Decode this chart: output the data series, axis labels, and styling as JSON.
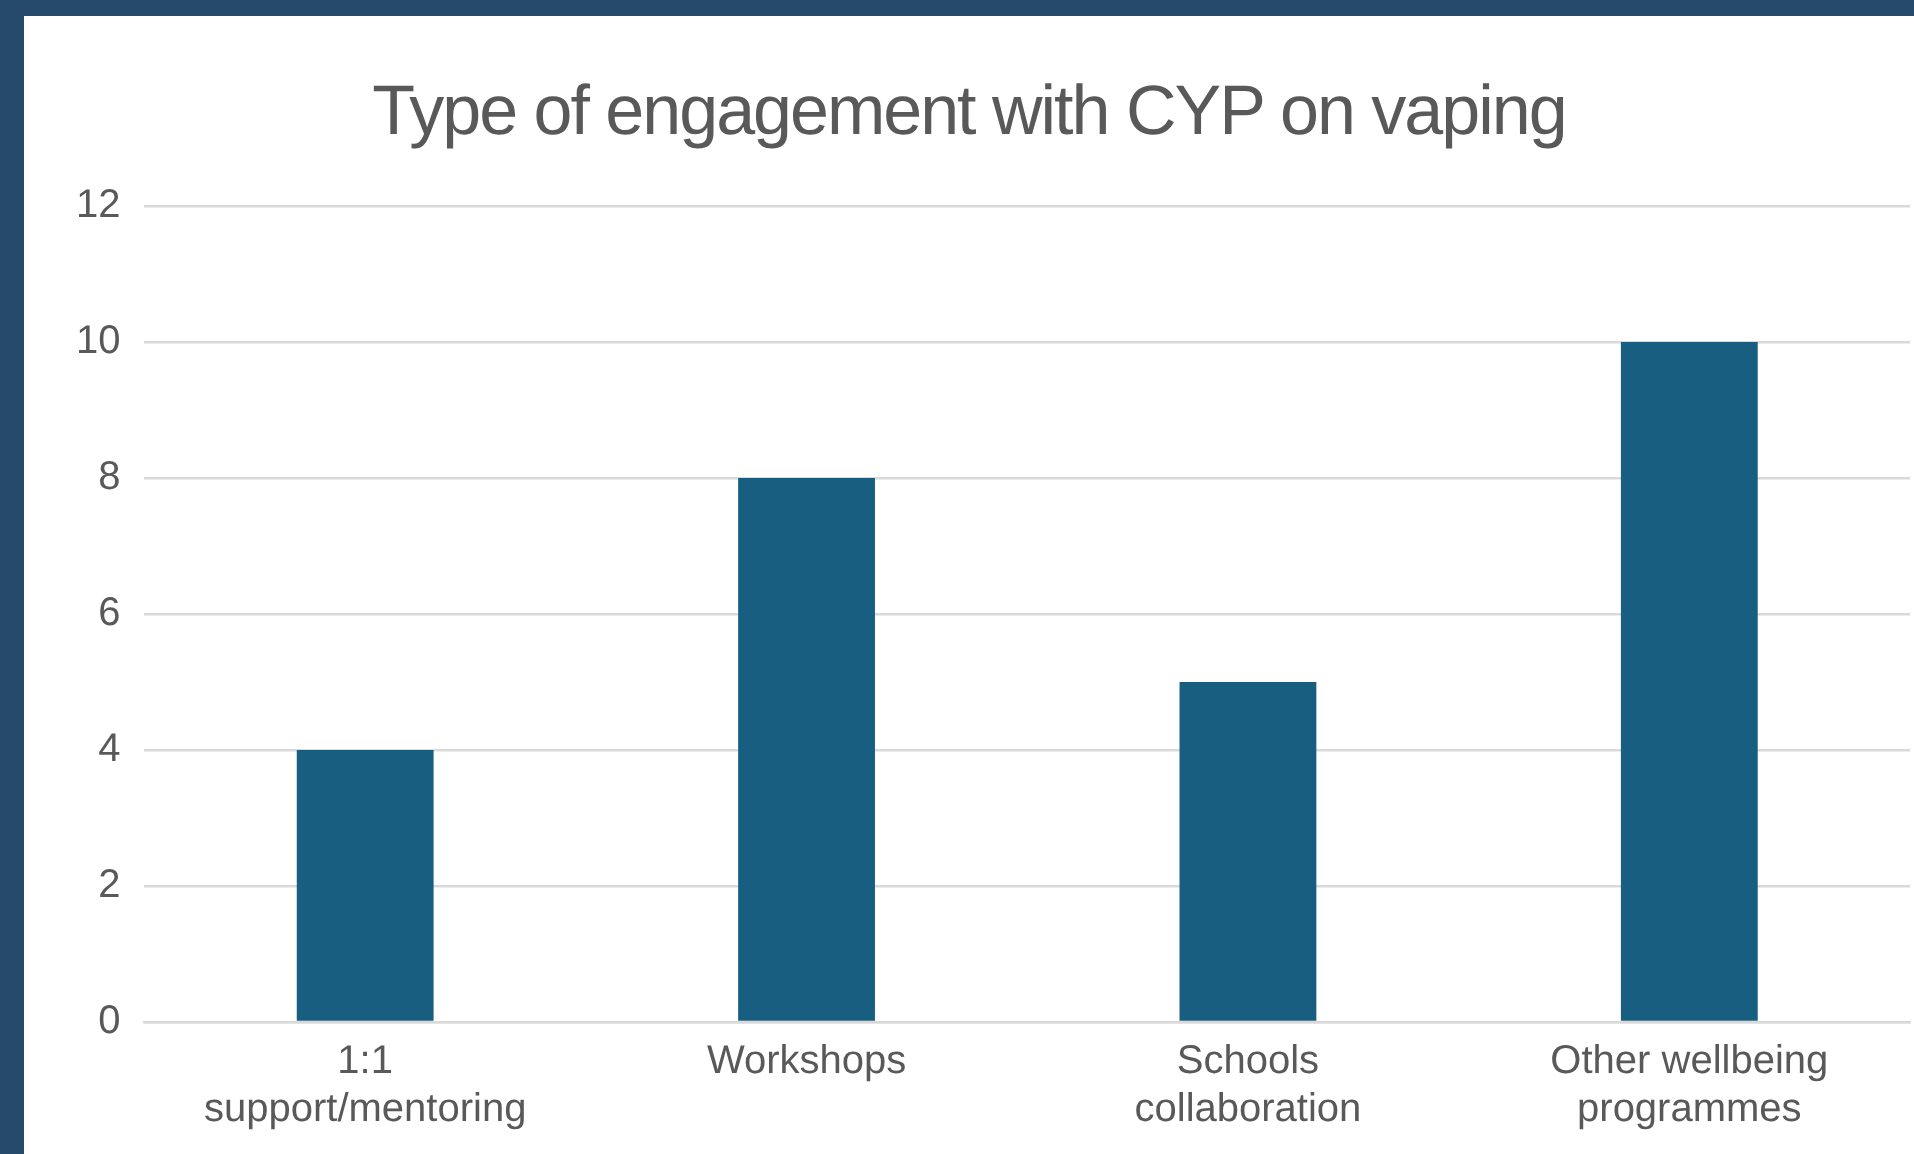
{
  "chart_data": {
    "type": "bar",
    "title": "Type of engagement with CYP on vaping",
    "categories": [
      "1:1 support/mentoring",
      "Workshops",
      "Schools collaboration",
      "Other wellbeing programmes"
    ],
    "values": [
      4,
      8,
      5,
      10
    ],
    "color": "#175e80",
    "ylim": [
      0,
      12
    ],
    "yticks": [
      0,
      2,
      4,
      6,
      8,
      10,
      12
    ],
    "grid": "y"
  }
}
